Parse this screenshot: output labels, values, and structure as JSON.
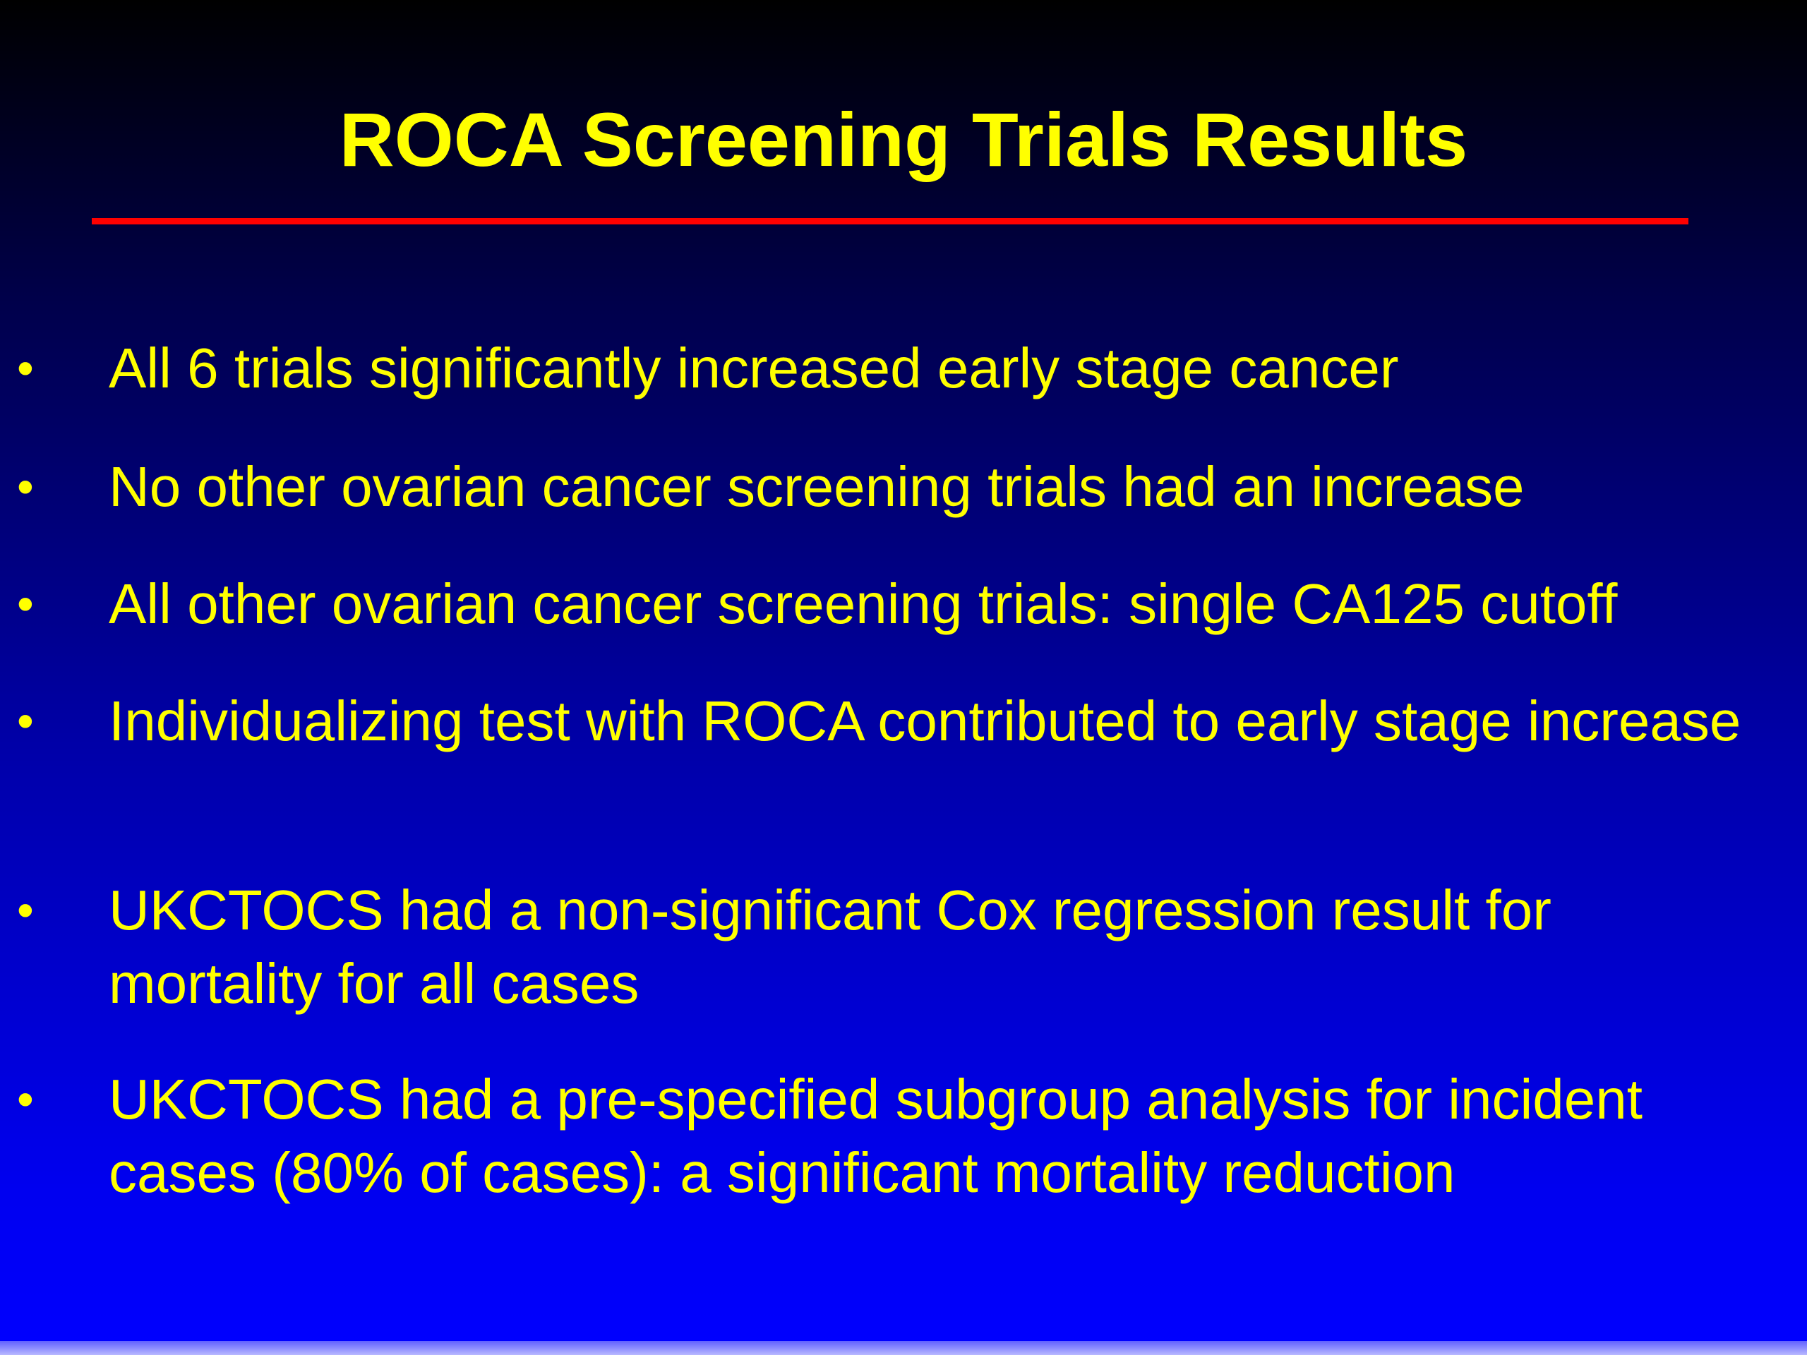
{
  "slide": {
    "title": "ROCA Screening Trials Results",
    "bullet_symbol": "•",
    "bullets": [
      "All 6 trials significantly increased early stage cancer",
      "No other ovarian cancer screening trials had an increase",
      "All other ovarian cancer screening trials: single CA125 cutoff",
      "Individualizing test with ROCA contributed to early stage increase",
      "UKCTOCS had a non-significant Cox regression result for mortality for all cases",
      "UKCTOCS had a pre-specified subgroup analysis for incident cases (80% of cases): a significant mortality reduction"
    ]
  },
  "colors": {
    "text": "#ffff00",
    "rule": "#ff0000",
    "background_top": "#000000",
    "background_bottom": "#0000ff"
  }
}
